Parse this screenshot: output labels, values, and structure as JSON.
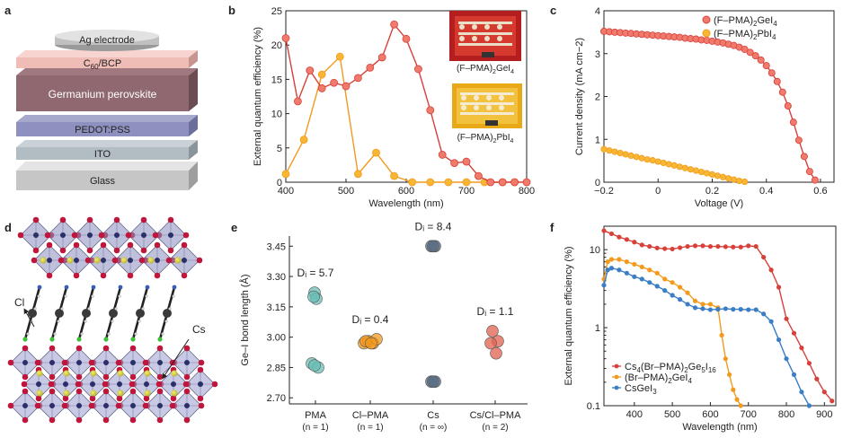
{
  "panels": {
    "a": {
      "label": "a",
      "layers": [
        "Ag electrode",
        "C60/BCP",
        "Germanium perovskite",
        "PEDOT:PSS",
        "ITO",
        "Glass"
      ]
    },
    "b": {
      "label": "b",
      "inset_labels": [
        "(F–PMA)2GeI4",
        "(F–PMA)2PbI4"
      ]
    },
    "c": {
      "label": "c"
    },
    "d": {
      "label": "d",
      "annotations": [
        "Cl",
        "Cs"
      ]
    },
    "e": {
      "label": "e"
    },
    "f": {
      "label": "f"
    }
  },
  "colors": {
    "red": "#d8403a",
    "red_fill": "#f07a6c",
    "orange": "#f39a1e",
    "orange_fill": "#f7b733",
    "teal": "#6bbfb5",
    "slate": "#5a6e84",
    "blue": "#3a7ec6"
  },
  "chart_data": [
    {
      "id": "b",
      "type": "line",
      "xlabel": "Wavelength (nm)",
      "ylabel": "External quantum efficiency (%)",
      "xlim": [
        400,
        800
      ],
      "ylim": [
        0,
        25
      ],
      "xticks": [
        400,
        500,
        600,
        700,
        800
      ],
      "yticks": [
        0,
        5,
        10,
        15,
        20,
        25
      ],
      "series": [
        {
          "name": "(F–PMA)2GeI4",
          "color": "#d8403a",
          "x": [
            400,
            420,
            440,
            460,
            480,
            500,
            520,
            540,
            560,
            580,
            600,
            620,
            640,
            660,
            680,
            700,
            720,
            740,
            760,
            780,
            800
          ],
          "y": [
            21,
            11.8,
            16.3,
            13.7,
            14.5,
            14,
            15.2,
            16.7,
            18.2,
            23,
            20.9,
            16.5,
            10.5,
            4,
            2.8,
            3,
            0.9,
            0,
            0,
            0,
            0
          ]
        },
        {
          "name": "(F–PMA)2PbI4",
          "color": "#f39a1e",
          "x": [
            400,
            430,
            460,
            490,
            520,
            550,
            580,
            610,
            640,
            670,
            700,
            730,
            760,
            780
          ],
          "y": [
            1.2,
            6.2,
            15.7,
            18.3,
            1.2,
            4.3,
            0.9,
            0,
            0,
            0,
            0,
            0,
            0,
            0
          ]
        }
      ]
    },
    {
      "id": "c",
      "type": "line",
      "xlabel": "Voltage (V)",
      "ylabel": "Current density (mA cm−2)",
      "xlim": [
        -0.2,
        0.65
      ],
      "ylim": [
        0,
        4
      ],
      "xticks": [
        -0.2,
        0,
        0.2,
        0.4,
        0.6
      ],
      "yticks": [
        0,
        1,
        2,
        3,
        4
      ],
      "legend": "top-right",
      "series": [
        {
          "name": "(F–PMA)2GeI4",
          "color": "#d8403a",
          "x": [
            -0.2,
            -0.18,
            -0.16,
            -0.14,
            -0.12,
            -0.1,
            -0.08,
            -0.06,
            -0.04,
            -0.02,
            0,
            0.02,
            0.04,
            0.06,
            0.08,
            0.1,
            0.12,
            0.14,
            0.16,
            0.18,
            0.2,
            0.22,
            0.24,
            0.26,
            0.28,
            0.3,
            0.32,
            0.34,
            0.36,
            0.38,
            0.4,
            0.42,
            0.44,
            0.46,
            0.48,
            0.5,
            0.52,
            0.54,
            0.56,
            0.58
          ],
          "y": [
            3.52,
            3.51,
            3.5,
            3.49,
            3.48,
            3.47,
            3.46,
            3.45,
            3.44,
            3.43,
            3.42,
            3.41,
            3.4,
            3.39,
            3.38,
            3.36,
            3.35,
            3.34,
            3.32,
            3.31,
            3.29,
            3.27,
            3.25,
            3.22,
            3.19,
            3.15,
            3.1,
            3.03,
            2.95,
            2.85,
            2.72,
            2.55,
            2.35,
            2.1,
            1.78,
            1.4,
            0.98,
            0.6,
            0.25,
            0.05
          ]
        },
        {
          "name": "(F–PMA)2PbI4",
          "color": "#f39a1e",
          "x": [
            -0.2,
            -0.18,
            -0.16,
            -0.14,
            -0.12,
            -0.1,
            -0.08,
            -0.06,
            -0.04,
            -0.02,
            0,
            0.02,
            0.04,
            0.06,
            0.08,
            0.1,
            0.12,
            0.14,
            0.16,
            0.18,
            0.2,
            0.22,
            0.24,
            0.26,
            0.28,
            0.3,
            0.32
          ],
          "y": [
            0.77,
            0.74,
            0.71,
            0.68,
            0.65,
            0.62,
            0.59,
            0.56,
            0.53,
            0.51,
            0.48,
            0.45,
            0.42,
            0.39,
            0.36,
            0.33,
            0.3,
            0.27,
            0.24,
            0.21,
            0.18,
            0.15,
            0.12,
            0.09,
            0.06,
            0.03,
            0.01
          ]
        }
      ]
    },
    {
      "id": "e",
      "type": "scatter",
      "ylabel": "Ge–I bond length (Å)",
      "ylim": [
        2.67,
        3.5
      ],
      "yticks": [
        2.7,
        2.85,
        3.0,
        3.15,
        3.3,
        3.45
      ],
      "categories": [
        "PMA",
        "Cl–PMA",
        "Cs",
        "Cs/Cl–PMA"
      ],
      "counts": [
        "(n = 1)",
        "(n = 1)",
        "(n = ∞)",
        "(n = 2)"
      ],
      "d_labels": [
        "Dᵢ = 5.7",
        "Dᵢ = 0.4",
        "Dᵢ = 8.4",
        "Dᵢ = 1.1"
      ],
      "colors": [
        "#6bbfb5",
        "#f39a1e",
        "#5a6e84",
        "#e0604f"
      ],
      "points": [
        [
          3.22,
          3.19,
          3.2,
          2.87,
          2.85,
          2.86
        ],
        [
          2.97,
          2.98,
          2.97,
          2.98,
          2.99,
          2.97
        ],
        [
          3.45,
          3.45,
          3.45,
          2.78,
          2.78,
          2.78
        ],
        [
          3.03,
          2.98,
          2.97,
          2.92
        ]
      ]
    },
    {
      "id": "f",
      "type": "line",
      "xlabel": "Wavelength (nm)",
      "ylabel": "External quantum efficiency (%)",
      "yscale": "log",
      "xlim": [
        320,
        930
      ],
      "ylim": [
        0.1,
        20
      ],
      "xticks": [
        400,
        500,
        600,
        700,
        800,
        900
      ],
      "yticks": [
        0.1,
        1,
        10
      ],
      "legend": "bottom-left",
      "series": [
        {
          "name": "Cs4(Br–PMA)2Ge5I16",
          "color": "#d8403a",
          "x": [
            320,
            340,
            360,
            380,
            400,
            420,
            440,
            460,
            480,
            500,
            520,
            540,
            560,
            580,
            600,
            620,
            640,
            660,
            680,
            700,
            720,
            740,
            760,
            780,
            800,
            820,
            840,
            860,
            880,
            900,
            920
          ],
          "y": [
            17.5,
            16,
            14.5,
            13.5,
            12.5,
            11.5,
            11,
            10.5,
            10.3,
            10.2,
            10.6,
            11,
            11.2,
            11.2,
            11,
            11,
            10.9,
            10.8,
            10.8,
            11.2,
            11,
            8,
            5.5,
            3.3,
            1.3,
            0.85,
            0.55,
            0.35,
            0.22,
            0.15,
            0.115
          ]
        },
        {
          "name": "(Br–PMA)2GeI4",
          "color": "#f39a1e",
          "x": [
            320,
            330,
            340,
            360,
            380,
            400,
            420,
            440,
            460,
            480,
            500,
            520,
            540,
            560,
            580,
            600,
            620,
            630,
            640,
            650,
            660,
            670,
            680
          ],
          "y": [
            4.2,
            7,
            7.5,
            7.5,
            7,
            6.5,
            6,
            5.5,
            5,
            4.2,
            3.8,
            3.3,
            2.8,
            2.2,
            2,
            2,
            1.8,
            0.8,
            0.4,
            0.25,
            0.16,
            0.12,
            0.1
          ]
        },
        {
          "name": "CsGeI3",
          "color": "#3a7ec6",
          "x": [
            320,
            330,
            340,
            360,
            380,
            400,
            420,
            440,
            460,
            480,
            500,
            520,
            540,
            560,
            580,
            600,
            620,
            640,
            660,
            680,
            700,
            720,
            740,
            760,
            780,
            800,
            820,
            840,
            860
          ],
          "y": [
            3.5,
            5.5,
            5.8,
            5.5,
            5,
            4.5,
            4.2,
            3.8,
            3.4,
            3,
            2.6,
            2.3,
            2,
            1.8,
            1.75,
            1.7,
            1.72,
            1.75,
            1.72,
            1.72,
            1.7,
            1.7,
            1.5,
            1.2,
            0.7,
            0.4,
            0.25,
            0.15,
            0.1
          ]
        }
      ]
    }
  ]
}
